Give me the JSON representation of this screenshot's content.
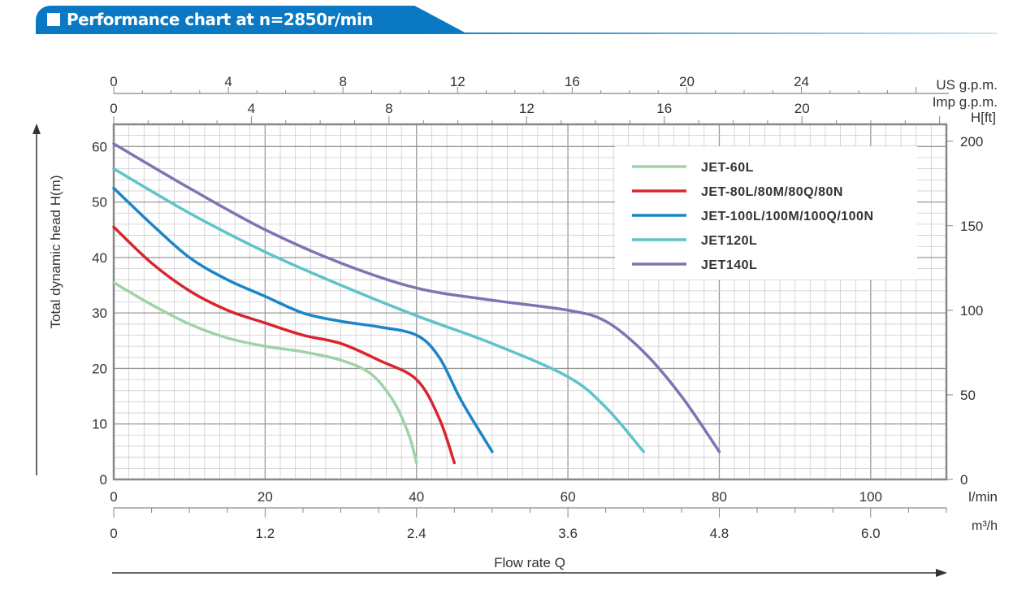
{
  "header": {
    "title": "Performance chart at n=2850r/min"
  },
  "chart_data": {
    "type": "line",
    "title": "Performance chart at n=2850r/min",
    "xlabel": "Flow rate Q",
    "ylabel": "Total dynamic head H(m)",
    "xlim": [
      0,
      110
    ],
    "ylim": [
      0,
      64
    ],
    "grid": true,
    "legend_position": "top-right",
    "x_ticks": [
      0,
      20,
      40,
      60,
      80,
      100
    ],
    "x_unit": "l/min",
    "y_ticks": [
      0,
      10,
      20,
      30,
      40,
      50,
      60
    ],
    "m3h_ticks": [
      "0",
      "1.2",
      "2.4",
      "3.6",
      "4.8",
      "6.0"
    ],
    "m3h_unit": "m³/h",
    "us_gpm_ticks": [
      0,
      4,
      8,
      12,
      16,
      20,
      24
    ],
    "us_gpm_unit": "US g.p.m.",
    "imp_gpm_ticks": [
      0,
      4,
      8,
      12,
      16,
      20
    ],
    "imp_gpm_unit": "Imp g.p.m.",
    "ft_ticks": [
      0,
      50,
      100,
      150,
      200
    ],
    "ft_unit": "H[ft]",
    "series": [
      {
        "name": "JET-60L",
        "color": "#9fd3a6",
        "x": [
          0,
          5,
          10,
          15,
          20,
          25,
          30,
          34,
          37,
          39,
          40
        ],
        "y": [
          35.5,
          31.5,
          28,
          25.5,
          24,
          23,
          21.5,
          19,
          14,
          8,
          3
        ]
      },
      {
        "name": "JET-80L/80M/80Q/80N",
        "color": "#d9262e",
        "x": [
          0,
          5,
          10,
          15,
          20,
          25,
          30,
          35,
          40,
          43,
          45
        ],
        "y": [
          45.5,
          39,
          34,
          30.5,
          28.2,
          26,
          24.5,
          21.5,
          18,
          11,
          3
        ]
      },
      {
        "name": "JET-100L/100M/100Q/100N",
        "color": "#1a86c8",
        "x": [
          0,
          5,
          10,
          15,
          20,
          25,
          30,
          35,
          40,
          43,
          46,
          50
        ],
        "y": [
          52.5,
          46,
          40,
          36,
          33,
          30,
          28.5,
          27.5,
          26,
          22,
          14,
          5
        ]
      },
      {
        "name": "JET120L",
        "color": "#5fc3c8",
        "x": [
          0,
          10,
          20,
          30,
          40,
          50,
          60,
          65,
          70
        ],
        "y": [
          56,
          48,
          41,
          35,
          29.5,
          24.5,
          18.5,
          13,
          5
        ]
      },
      {
        "name": "JET140L",
        "color": "#8073b3",
        "x": [
          0,
          10,
          20,
          30,
          40,
          50,
          60,
          65,
          70,
          75,
          80
        ],
        "y": [
          60.5,
          52.5,
          45,
          39,
          34.5,
          32.3,
          30.5,
          28.5,
          23,
          15,
          5
        ]
      }
    ]
  }
}
